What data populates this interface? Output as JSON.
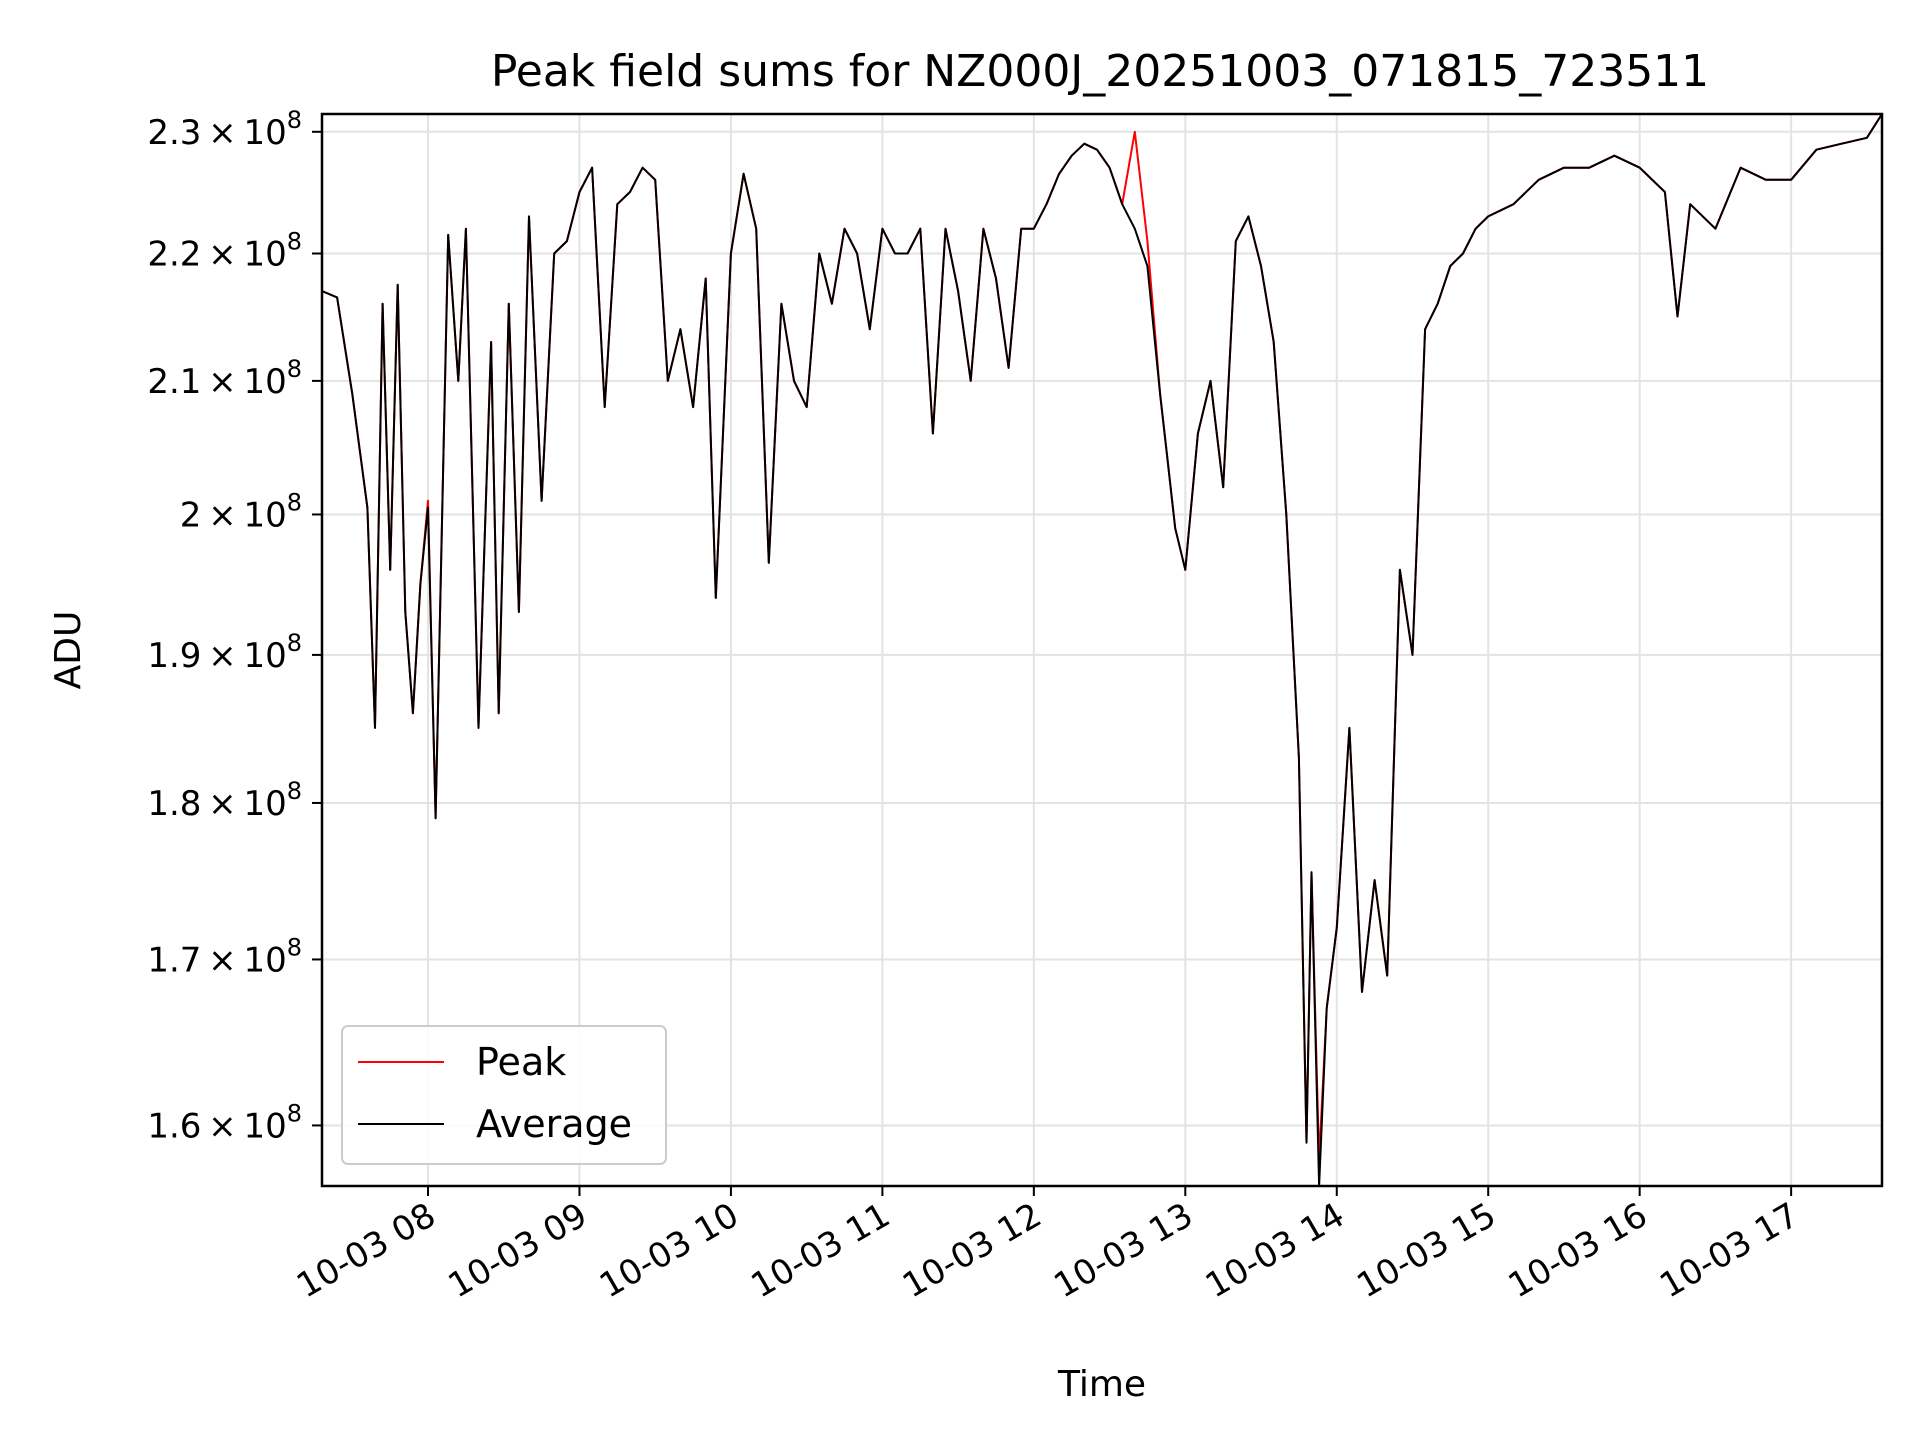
{
  "chart_data": {
    "type": "line",
    "title": "Peak field sums for NZ000J_20251003_071815_723511",
    "xlabel": "Time",
    "ylabel": "ADU",
    "y_scale": "log",
    "xlim": [
      "2025-10-03 07:18",
      "2025-10-03 17:36"
    ],
    "ylim": [
      156500000,
      231500000
    ],
    "grid": true,
    "legend_position": "lower-left",
    "x_ticks": [
      {
        "value": "2025-10-03 08:00",
        "label": "10-03 08"
      },
      {
        "value": "2025-10-03 09:00",
        "label": "10-03 09"
      },
      {
        "value": "2025-10-03 10:00",
        "label": "10-03 10"
      },
      {
        "value": "2025-10-03 11:00",
        "label": "10-03 11"
      },
      {
        "value": "2025-10-03 12:00",
        "label": "10-03 12"
      },
      {
        "value": "2025-10-03 13:00",
        "label": "10-03 13"
      },
      {
        "value": "2025-10-03 14:00",
        "label": "10-03 14"
      },
      {
        "value": "2025-10-03 15:00",
        "label": "10-03 15"
      },
      {
        "value": "2025-10-03 16:00",
        "label": "10-03 16"
      },
      {
        "value": "2025-10-03 17:00",
        "label": "10-03 17"
      }
    ],
    "y_ticks": [
      {
        "value": 160000000,
        "mantissa": "1.6",
        "base": "10",
        "exponent": "8"
      },
      {
        "value": 170000000,
        "mantissa": "1.7",
        "base": "10",
        "exponent": "8"
      },
      {
        "value": 180000000,
        "mantissa": "1.8",
        "base": "10",
        "exponent": "8"
      },
      {
        "value": 190000000,
        "mantissa": "1.9",
        "base": "10",
        "exponent": "8"
      },
      {
        "value": 200000000,
        "mantissa": "2",
        "base": "10",
        "exponent": "8"
      },
      {
        "value": 210000000,
        "mantissa": "2.1",
        "base": "10",
        "exponent": "8"
      },
      {
        "value": 220000000,
        "mantissa": "2.2",
        "base": "10",
        "exponent": "8"
      },
      {
        "value": 230000000,
        "mantissa": "2.3",
        "base": "10",
        "exponent": "8"
      }
    ],
    "x": [
      "2025-10-03 07:18",
      "2025-10-03 07:24",
      "2025-10-03 07:30",
      "2025-10-03 07:36",
      "2025-10-03 07:39",
      "2025-10-03 07:42",
      "2025-10-03 07:45",
      "2025-10-03 07:48",
      "2025-10-03 07:51",
      "2025-10-03 07:54",
      "2025-10-03 07:57",
      "2025-10-03 08:00",
      "2025-10-03 08:03",
      "2025-10-03 08:08",
      "2025-10-03 08:12",
      "2025-10-03 08:15",
      "2025-10-03 08:20",
      "2025-10-03 08:25",
      "2025-10-03 08:28",
      "2025-10-03 08:32",
      "2025-10-03 08:36",
      "2025-10-03 08:40",
      "2025-10-03 08:45",
      "2025-10-03 08:50",
      "2025-10-03 08:55",
      "2025-10-03 09:00",
      "2025-10-03 09:05",
      "2025-10-03 09:10",
      "2025-10-03 09:15",
      "2025-10-03 09:20",
      "2025-10-03 09:25",
      "2025-10-03 09:30",
      "2025-10-03 09:35",
      "2025-10-03 09:40",
      "2025-10-03 09:45",
      "2025-10-03 09:50",
      "2025-10-03 09:54",
      "2025-10-03 10:00",
      "2025-10-03 10:05",
      "2025-10-03 10:10",
      "2025-10-03 10:15",
      "2025-10-03 10:20",
      "2025-10-03 10:25",
      "2025-10-03 10:30",
      "2025-10-03 10:35",
      "2025-10-03 10:40",
      "2025-10-03 10:45",
      "2025-10-03 10:50",
      "2025-10-03 10:55",
      "2025-10-03 11:00",
      "2025-10-03 11:05",
      "2025-10-03 11:10",
      "2025-10-03 11:15",
      "2025-10-03 11:20",
      "2025-10-03 11:25",
      "2025-10-03 11:30",
      "2025-10-03 11:35",
      "2025-10-03 11:40",
      "2025-10-03 11:45",
      "2025-10-03 11:50",
      "2025-10-03 11:55",
      "2025-10-03 12:00",
      "2025-10-03 12:05",
      "2025-10-03 12:10",
      "2025-10-03 12:15",
      "2025-10-03 12:20",
      "2025-10-03 12:25",
      "2025-10-03 12:30",
      "2025-10-03 12:35",
      "2025-10-03 12:40",
      "2025-10-03 12:45",
      "2025-10-03 12:50",
      "2025-10-03 12:53",
      "2025-10-03 12:56",
      "2025-10-03 13:00",
      "2025-10-03 13:05",
      "2025-10-03 13:10",
      "2025-10-03 13:15",
      "2025-10-03 13:20",
      "2025-10-03 13:25",
      "2025-10-03 13:30",
      "2025-10-03 13:35",
      "2025-10-03 13:40",
      "2025-10-03 13:45",
      "2025-10-03 13:48",
      "2025-10-03 13:50",
      "2025-10-03 13:53",
      "2025-10-03 13:56",
      "2025-10-03 14:00",
      "2025-10-03 14:05",
      "2025-10-03 14:10",
      "2025-10-03 14:15",
      "2025-10-03 14:20",
      "2025-10-03 14:25",
      "2025-10-03 14:30",
      "2025-10-03 14:35",
      "2025-10-03 14:40",
      "2025-10-03 14:45",
      "2025-10-03 14:50",
      "2025-10-03 14:55",
      "2025-10-03 15:00",
      "2025-10-03 15:10",
      "2025-10-03 15:20",
      "2025-10-03 15:30",
      "2025-10-03 15:40",
      "2025-10-03 15:50",
      "2025-10-03 16:00",
      "2025-10-03 16:10",
      "2025-10-03 16:15",
      "2025-10-03 16:20",
      "2025-10-03 16:30",
      "2025-10-03 16:40",
      "2025-10-03 16:50",
      "2025-10-03 17:00",
      "2025-10-03 17:10",
      "2025-10-03 17:20",
      "2025-10-03 17:30",
      "2025-10-03 17:36"
    ],
    "series": [
      {
        "name": "Peak",
        "color": "#ff0000",
        "values": [
          217000000,
          216500000,
          209000000,
          200500000,
          185000000,
          216000000,
          196000000,
          217500000,
          193000000,
          186000000,
          195000000,
          201000000,
          179000000,
          221500000,
          210000000,
          222000000,
          185000000,
          213000000,
          186000000,
          216000000,
          193000000,
          223000000,
          201000000,
          220000000,
          221000000,
          225000000,
          227000000,
          208000000,
          224000000,
          225000000,
          227000000,
          226000000,
          210000000,
          214000000,
          208000000,
          218000000,
          194000000,
          220000000,
          226500000,
          222000000,
          196500000,
          216000000,
          210000000,
          208000000,
          220000000,
          216000000,
          222000000,
          220000000,
          214000000,
          222000000,
          220000000,
          220000000,
          222000000,
          206000000,
          222000000,
          217000000,
          210000000,
          222000000,
          218000000,
          211000000,
          222000000,
          222000000,
          224000000,
          226500000,
          228000000,
          229000000,
          228500000,
          227000000,
          224000000,
          230000000,
          221000000,
          209000000,
          204000000,
          199000000,
          196000000,
          206000000,
          210000000,
          202000000,
          221000000,
          223000000,
          219000000,
          213000000,
          200000000,
          183000000,
          159000000,
          175500000,
          158000000,
          167000000,
          172000000,
          185000000,
          168000000,
          175000000,
          169000000,
          196000000,
          190000000,
          214000000,
          216000000,
          219000000,
          220000000,
          222000000,
          223000000,
          224000000,
          226000000,
          227000000,
          227000000,
          228000000,
          227000000,
          225000000,
          215000000,
          224000000,
          222000000,
          227000000,
          226000000,
          226000000,
          228500000,
          229000000,
          229500000,
          231500000
        ]
      },
      {
        "name": "Average",
        "color": "#000000",
        "values": [
          217000000,
          216500000,
          209000000,
          200500000,
          185000000,
          216000000,
          196000000,
          217500000,
          193000000,
          186000000,
          195000000,
          200500000,
          179000000,
          221500000,
          210000000,
          222000000,
          185000000,
          213000000,
          186000000,
          216000000,
          193000000,
          223000000,
          201000000,
          220000000,
          221000000,
          225000000,
          227000000,
          208000000,
          224000000,
          225000000,
          227000000,
          226000000,
          210000000,
          214000000,
          208000000,
          218000000,
          194000000,
          220000000,
          226500000,
          222000000,
          196500000,
          216000000,
          210000000,
          208000000,
          220000000,
          216000000,
          222000000,
          220000000,
          214000000,
          222000000,
          220000000,
          220000000,
          222000000,
          206000000,
          222000000,
          217000000,
          210000000,
          222000000,
          218000000,
          211000000,
          222000000,
          222000000,
          224000000,
          226500000,
          228000000,
          229000000,
          228500000,
          227000000,
          224000000,
          222000000,
          219000000,
          209000000,
          204000000,
          199000000,
          196000000,
          206000000,
          210000000,
          202000000,
          221000000,
          223000000,
          219000000,
          213000000,
          200000000,
          183000000,
          159000000,
          175500000,
          156500000,
          167000000,
          172000000,
          185000000,
          168000000,
          175000000,
          169000000,
          196000000,
          190000000,
          214000000,
          216000000,
          219000000,
          220000000,
          222000000,
          223000000,
          224000000,
          226000000,
          227000000,
          227000000,
          228000000,
          227000000,
          225000000,
          215000000,
          224000000,
          222000000,
          227000000,
          226000000,
          226000000,
          228500000,
          229000000,
          229500000,
          231500000
        ]
      }
    ]
  }
}
